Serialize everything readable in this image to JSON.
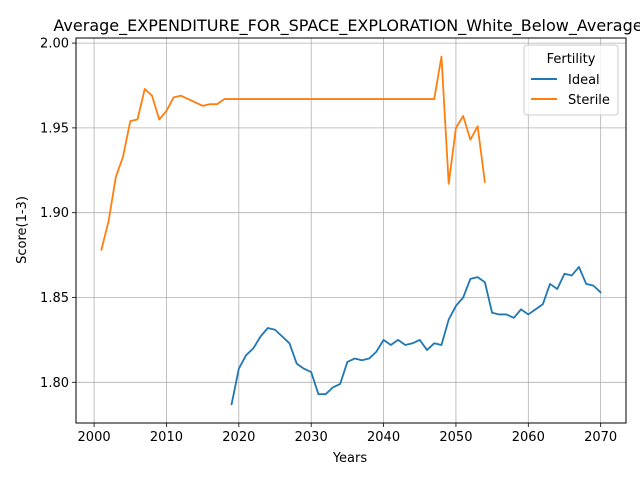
{
  "chart_data": {
    "type": "line",
    "title": "Average_EXPENDITURE_FOR_SPACE_EXPLORATION_White_Below_Average",
    "xlabel": "Years",
    "ylabel": "Score(1-3)",
    "xlim": [
      1997.5,
      2073.5
    ],
    "ylim": [
      1.776,
      2.003
    ],
    "xticks": [
      "2000",
      "2010",
      "2020",
      "2030",
      "2040",
      "2050",
      "2060",
      "2070"
    ],
    "yticks": [
      "1.80",
      "1.85",
      "1.90",
      "1.95",
      "2.00"
    ],
    "grid": true,
    "legend": {
      "title": "Fertility",
      "placement": "top-right"
    },
    "series": [
      {
        "name": "Ideal",
        "color": "#1f77b4",
        "x": [
          2019,
          2020,
          2021,
          2022,
          2023,
          2024,
          2025,
          2026,
          2027,
          2028,
          2029,
          2030,
          2031,
          2032,
          2033,
          2034,
          2035,
          2036,
          2037,
          2038,
          2039,
          2040,
          2041,
          2042,
          2043,
          2044,
          2045,
          2046,
          2047,
          2048,
          2049,
          2050,
          2051,
          2052,
          2053,
          2054,
          2055,
          2056,
          2057,
          2058,
          2059,
          2060,
          2061,
          2062,
          2063,
          2064,
          2065,
          2066,
          2067,
          2068,
          2069,
          2070
        ],
        "values": [
          1.787,
          1.808,
          1.816,
          1.82,
          1.827,
          1.832,
          1.831,
          1.827,
          1.823,
          1.811,
          1.808,
          1.806,
          1.793,
          1.793,
          1.797,
          1.799,
          1.812,
          1.814,
          1.813,
          1.814,
          1.818,
          1.825,
          1.822,
          1.825,
          1.822,
          1.823,
          1.825,
          1.819,
          1.823,
          1.822,
          1.837,
          1.845,
          1.85,
          1.861,
          1.862,
          1.859,
          1.841,
          1.84,
          1.84,
          1.838,
          1.843,
          1.84,
          1.843,
          1.846,
          1.858,
          1.855,
          1.864,
          1.863,
          1.868,
          1.858,
          1.857,
          1.853
        ]
      },
      {
        "name": "Sterile",
        "color": "#ff7f0e",
        "x": [
          2001,
          2002,
          2003,
          2004,
          2005,
          2006,
          2007,
          2008,
          2009,
          2010,
          2011,
          2012,
          2013,
          2014,
          2015,
          2016,
          2017,
          2018,
          2019,
          2020,
          2021,
          2022,
          2023,
          2024,
          2025,
          2026,
          2027,
          2028,
          2029,
          2030,
          2031,
          2032,
          2033,
          2034,
          2035,
          2036,
          2037,
          2038,
          2039,
          2040,
          2041,
          2042,
          2043,
          2044,
          2045,
          2046,
          2047,
          2048,
          2049,
          2050,
          2051,
          2052,
          2053,
          2054
        ],
        "values": [
          1.878,
          1.895,
          1.921,
          1.933,
          1.954,
          1.955,
          1.973,
          1.969,
          1.955,
          1.96,
          1.968,
          1.969,
          1.967,
          1.965,
          1.963,
          1.964,
          1.964,
          1.967,
          1.967,
          1.967,
          1.967,
          1.967,
          1.967,
          1.967,
          1.967,
          1.967,
          1.967,
          1.967,
          1.967,
          1.967,
          1.967,
          1.967,
          1.967,
          1.967,
          1.967,
          1.967,
          1.967,
          1.967,
          1.967,
          1.967,
          1.967,
          1.967,
          1.967,
          1.967,
          1.967,
          1.967,
          1.967,
          1.992,
          1.917,
          1.95,
          1.957,
          1.943,
          1.951,
          1.918
        ]
      }
    ]
  }
}
